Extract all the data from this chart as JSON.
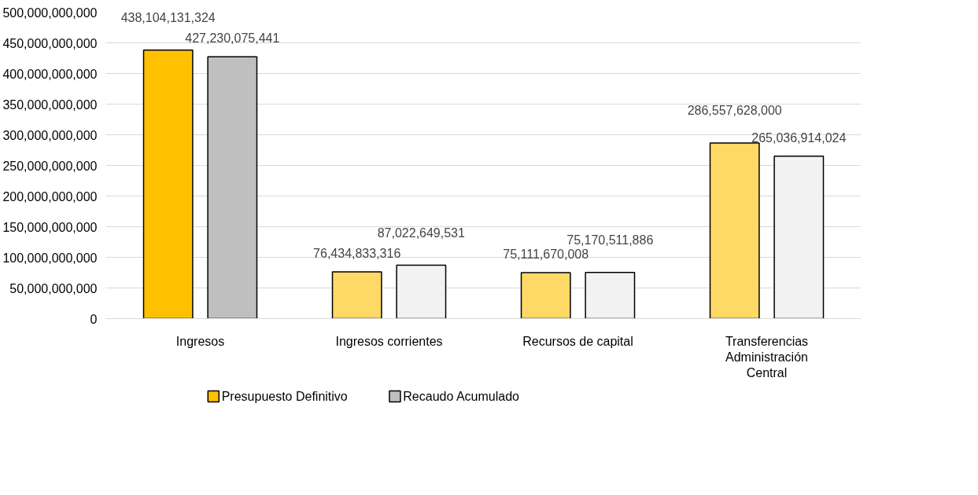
{
  "chart_data": {
    "type": "bar",
    "categories": [
      "Ingresos",
      "Ingresos corrientes",
      "Recursos de capital",
      "Transferencias Administración Central"
    ],
    "series": [
      {
        "name": "Presupuesto Definitivo",
        "color": "#ffc000",
        "colors": [
          "#ffc000",
          "#ffd966",
          "#ffd966",
          "#ffd966"
        ],
        "values": [
          438104131324,
          76434833316,
          75111670008,
          286557628000
        ],
        "value_labels": [
          "438,104,131,324",
          "76,434,833,316",
          "75,111,670,008",
          "286,557,628,000"
        ]
      },
      {
        "name": "Recaudo Acumulado",
        "color": "#bfbfbf",
        "colors": [
          "#bfbfbf",
          "#f2f2f2",
          "#f2f2f2",
          "#f2f2f2"
        ],
        "values": [
          427230075441,
          87022649531,
          75170511886,
          265036914024
        ],
        "value_labels": [
          "427,230,075,441",
          "87,022,649,531",
          "75,170,511,886",
          "265,036,914,024"
        ]
      }
    ],
    "ylim": [
      0,
      500000000000
    ],
    "yticks": [
      0,
      {
        "value": 50000000000,
        "label": "50,000,000,000"
      },
      {
        "value": 100000000000,
        "label": "100,000,000,000"
      },
      {
        "value": 150000000000,
        "label": "150,000,000,000"
      },
      {
        "value": 200000000000,
        "label": "200,000,000,000"
      },
      {
        "value": 250000000000,
        "label": "250,000,000,000"
      },
      {
        "value": 300000000000,
        "label": "300,000,000,000"
      },
      {
        "value": 350000000000,
        "label": "350,000,000,000"
      },
      {
        "value": 400000000000,
        "label": "400,000,000,000"
      },
      {
        "value": 450000000000,
        "label": "450,000,000,000"
      },
      {
        "value": 500000000000,
        "label": "500,000,000,000"
      }
    ],
    "grid": "y",
    "legend": "bottom left"
  }
}
